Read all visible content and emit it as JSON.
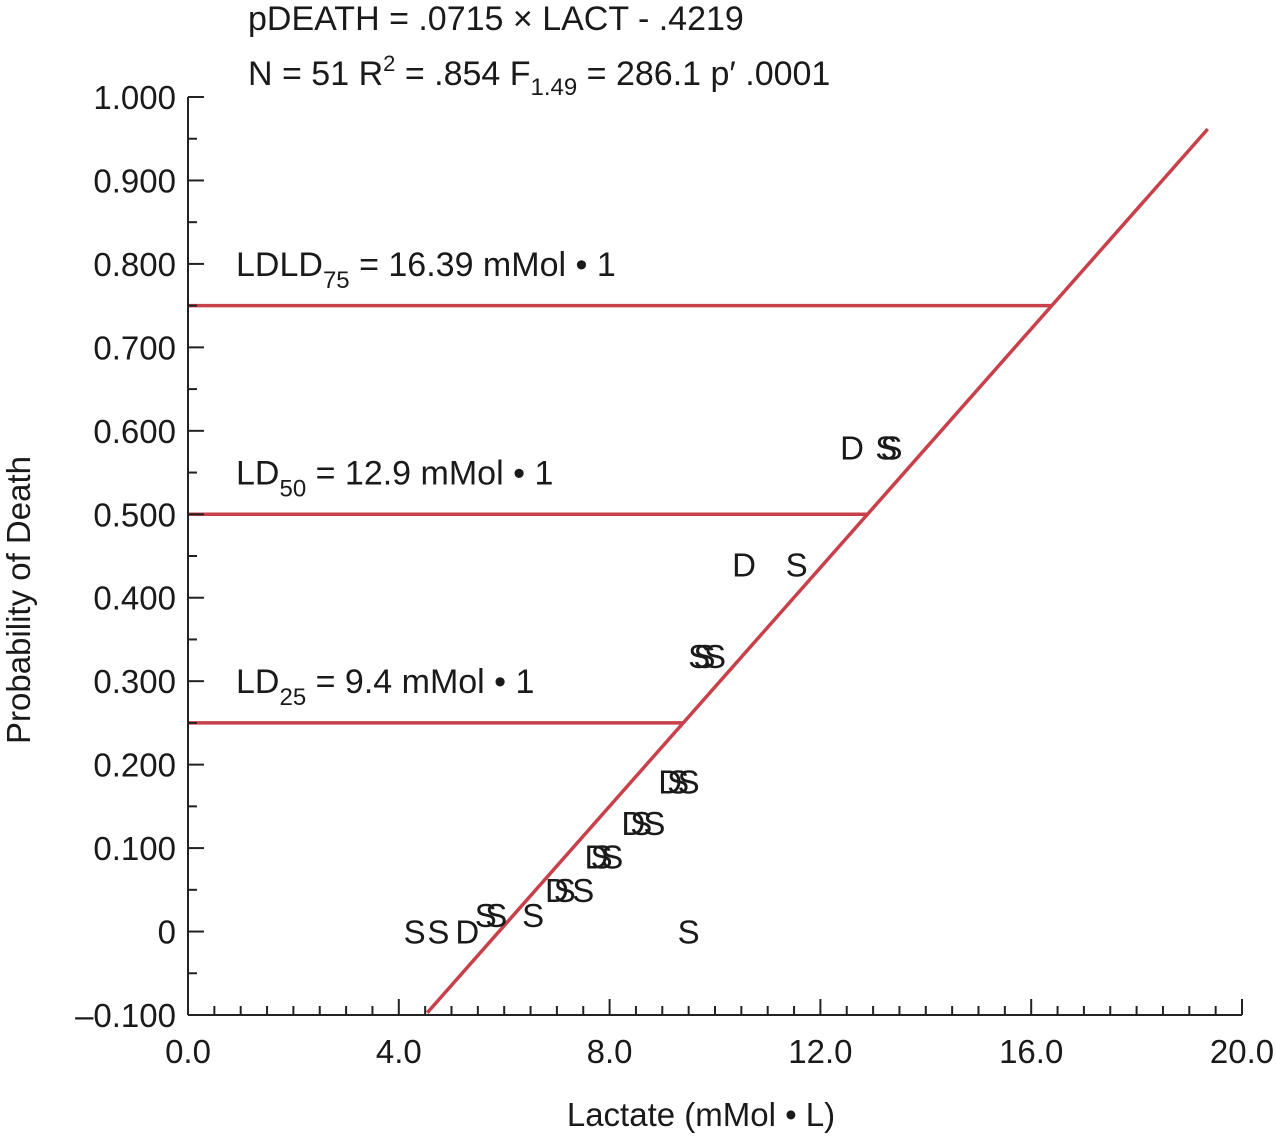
{
  "chart_data": {
    "type": "scatter",
    "header": {
      "eq_prefix": "pDEATH = .0715 ",
      "eq_times": "×",
      "eq_suffix": " LACT - .4219",
      "stats_n": "N = 51  R",
      "stats_r_sup": "2",
      "stats_mid": " = .854  F",
      "stats_f_sub": "1.49",
      "stats_end": " = 286.1  p′ .0001"
    },
    "xlabel": "Lactate (mMol • L)",
    "ylabel": "Probability of Death",
    "xlim": [
      0,
      20
    ],
    "ylim": [
      -0.1,
      1.0
    ],
    "x_ticks": [
      {
        "v": 0,
        "label": "0.0"
      },
      {
        "v": 4,
        "label": "4.0"
      },
      {
        "v": 8,
        "label": "8.0"
      },
      {
        "v": 12,
        "label": "12.0"
      },
      {
        "v": 16,
        "label": "16.0"
      },
      {
        "v": 20,
        "label": "20.0"
      }
    ],
    "y_ticks": [
      {
        "v": -0.1,
        "label": "–0.100"
      },
      {
        "v": 0,
        "label": "0"
      },
      {
        "v": 0.1,
        "label": "0.100"
      },
      {
        "v": 0.2,
        "label": "0.200"
      },
      {
        "v": 0.3,
        "label": "0.300"
      },
      {
        "v": 0.4,
        "label": "0.400"
      },
      {
        "v": 0.5,
        "label": "0.500"
      },
      {
        "v": 0.6,
        "label": "0.600"
      },
      {
        "v": 0.7,
        "label": "0.700"
      },
      {
        "v": 0.8,
        "label": "0.800"
      },
      {
        "v": 0.9,
        "label": "0.900"
      },
      {
        "v": 1.0,
        "label": "1.000"
      }
    ],
    "regression_line": {
      "slope": 0.0715,
      "intercept": -0.4219,
      "x_start": 4.54,
      "x_end": 19.35,
      "color": "#c8404a"
    },
    "thresholds": [
      {
        "y": 0.75,
        "x_end": 16.39,
        "label_main": "LDLD",
        "label_sub": "75",
        "label_rest": " = 16.39 mMol • 1",
        "label_y": 0.8
      },
      {
        "y": 0.5,
        "x_end": 12.9,
        "label_main": "LD",
        "label_sub": "50",
        "label_rest": " = 12.9 mMol • 1",
        "label_y": 0.55
      },
      {
        "y": 0.25,
        "x_end": 9.4,
        "label_main": "LD",
        "label_sub": "25",
        "label_rest": " = 9.4 mMol • 1",
        "label_y": 0.3
      }
    ],
    "points": [
      {
        "x": 4.3,
        "y": 0.0,
        "label": "S"
      },
      {
        "x": 4.75,
        "y": 0.0,
        "label": "S"
      },
      {
        "x": 5.3,
        "y": 0.0,
        "label": "D"
      },
      {
        "x": 5.65,
        "y": 0.02,
        "label": "S"
      },
      {
        "x": 5.85,
        "y": 0.02,
        "label": "S"
      },
      {
        "x": 6.55,
        "y": 0.02,
        "label": "S"
      },
      {
        "x": 7.0,
        "y": 0.05,
        "label": "D"
      },
      {
        "x": 7.15,
        "y": 0.05,
        "label": "S"
      },
      {
        "x": 7.5,
        "y": 0.05,
        "label": "S"
      },
      {
        "x": 7.75,
        "y": 0.09,
        "label": "D"
      },
      {
        "x": 7.85,
        "y": 0.09,
        "label": "S"
      },
      {
        "x": 8.05,
        "y": 0.09,
        "label": "S"
      },
      {
        "x": 8.45,
        "y": 0.13,
        "label": "D"
      },
      {
        "x": 8.6,
        "y": 0.13,
        "label": "S"
      },
      {
        "x": 8.85,
        "y": 0.13,
        "label": "S"
      },
      {
        "x": 9.15,
        "y": 0.18,
        "label": "D"
      },
      {
        "x": 9.3,
        "y": 0.18,
        "label": "S"
      },
      {
        "x": 9.5,
        "y": 0.18,
        "label": "S"
      },
      {
        "x": 9.5,
        "y": 0.0,
        "label": "S"
      },
      {
        "x": 9.7,
        "y": 0.33,
        "label": "S"
      },
      {
        "x": 9.8,
        "y": 0.33,
        "label": "S"
      },
      {
        "x": 10.0,
        "y": 0.33,
        "label": "S"
      },
      {
        "x": 10.55,
        "y": 0.44,
        "label": "D"
      },
      {
        "x": 11.55,
        "y": 0.44,
        "label": "S"
      },
      {
        "x": 12.6,
        "y": 0.58,
        "label": "D"
      },
      {
        "x": 13.25,
        "y": 0.58,
        "label": "S"
      },
      {
        "x": 13.35,
        "y": 0.58,
        "label": "S"
      }
    ]
  }
}
